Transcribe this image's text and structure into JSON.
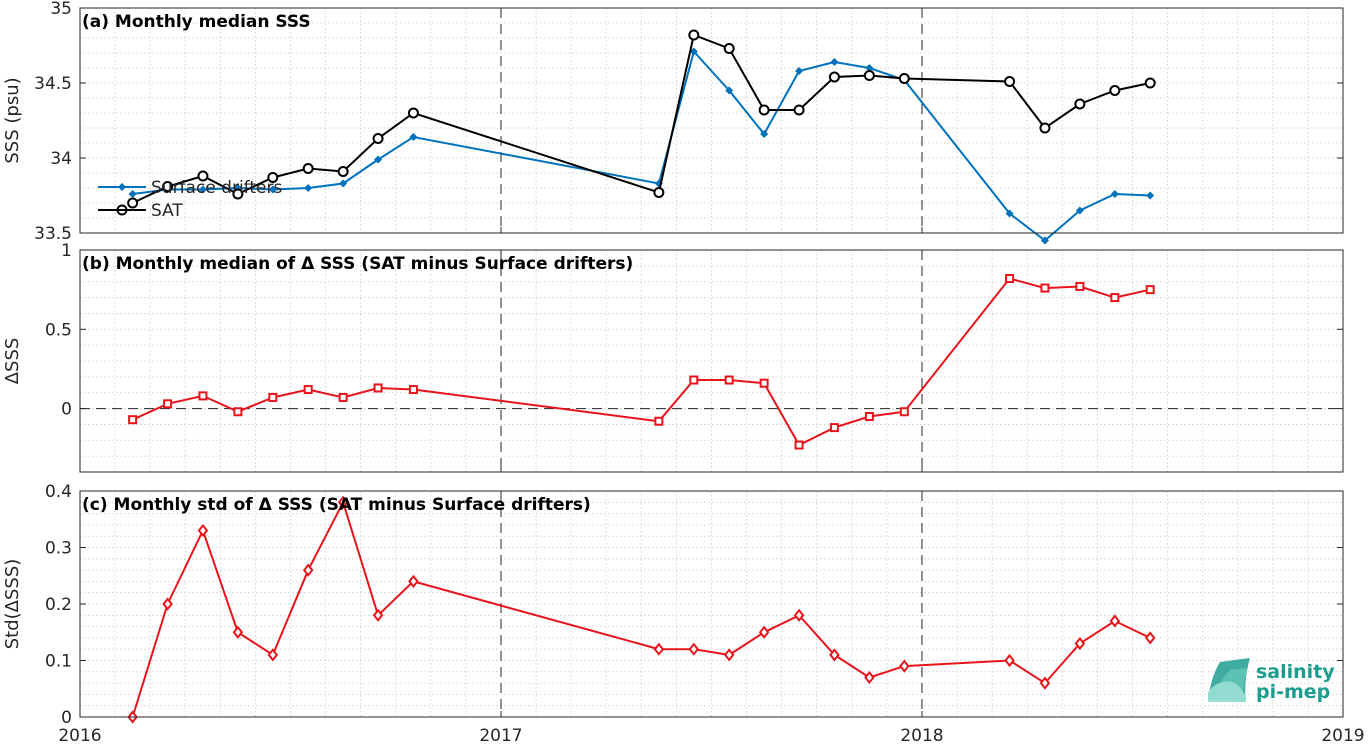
{
  "x_ticks": [
    "2016",
    "2017",
    "2018",
    "2019"
  ],
  "logo": {
    "line1": "salinity",
    "line2": "pi-mep"
  },
  "colors": {
    "surface_drifters": "#0072bd",
    "sat": "#000000",
    "delta": "#e8141c",
    "logo": "#1c9e8f"
  },
  "chart_data": [
    {
      "type": "line",
      "title": "(a) Monthly median SSS",
      "ylabel": "SSS (psu)",
      "xlim": [
        2016.0,
        2019.0
      ],
      "ylim": [
        33.5,
        35.0
      ],
      "y_ticks": [
        "33.5",
        "34",
        "34.5",
        "35"
      ],
      "y_tick_values": [
        33.5,
        34.0,
        34.5,
        35.0
      ],
      "legend": {
        "placement": "bottom-left",
        "entries": [
          "Surface drifters",
          "SAT"
        ]
      },
      "series": [
        {
          "name": "Surface drifters",
          "color": "#0072bd",
          "marker": "diamond",
          "x": [
            2016.125,
            2016.208,
            2016.292,
            2016.375,
            2016.458,
            2016.542,
            2016.625,
            2016.708,
            2016.792,
            2017.375,
            2017.458,
            2017.542,
            2017.625,
            2017.708,
            2017.792,
            2017.875,
            2017.958,
            2018.208,
            2018.292,
            2018.375,
            2018.458,
            2018.542
          ],
          "y": [
            33.76,
            33.79,
            33.79,
            33.8,
            33.79,
            33.8,
            33.83,
            33.99,
            34.14,
            33.83,
            34.71,
            34.45,
            34.16,
            34.58,
            34.64,
            34.6,
            34.52,
            33.63,
            33.45,
            33.65,
            33.76,
            33.75
          ]
        },
        {
          "name": "SAT",
          "color": "#000000",
          "marker": "circle",
          "x": [
            2016.125,
            2016.208,
            2016.292,
            2016.375,
            2016.458,
            2016.542,
            2016.625,
            2016.708,
            2016.792,
            2017.375,
            2017.458,
            2017.542,
            2017.625,
            2017.708,
            2017.792,
            2017.875,
            2017.958,
            2018.208,
            2018.292,
            2018.375,
            2018.458,
            2018.542
          ],
          "y": [
            33.7,
            33.81,
            33.88,
            33.76,
            33.87,
            33.93,
            33.91,
            34.13,
            34.3,
            33.77,
            34.82,
            34.73,
            34.32,
            34.32,
            34.54,
            34.55,
            34.53,
            34.51,
            34.2,
            34.36,
            34.45,
            34.5
          ]
        }
      ]
    },
    {
      "type": "line",
      "title": "(b) Monthly median of Δ SSS (SAT minus Surface drifters)",
      "ylabel": "ΔSSS",
      "xlim": [
        2016.0,
        2019.0
      ],
      "ylim": [
        -0.4,
        1.0
      ],
      "y_ticks": [
        "0",
        "0.5",
        "1"
      ],
      "y_tick_values": [
        0,
        0.5,
        1.0
      ],
      "zero_line": true,
      "series": [
        {
          "color": "#e8141c",
          "marker": "square",
          "x": [
            2016.125,
            2016.208,
            2016.292,
            2016.375,
            2016.458,
            2016.542,
            2016.625,
            2016.708,
            2016.792,
            2017.375,
            2017.458,
            2017.542,
            2017.625,
            2017.708,
            2017.792,
            2017.875,
            2017.958,
            2018.208,
            2018.292,
            2018.375,
            2018.458,
            2018.542
          ],
          "y": [
            -0.07,
            0.03,
            0.08,
            -0.02,
            0.07,
            0.12,
            0.07,
            0.13,
            0.12,
            -0.08,
            0.18,
            0.18,
            0.16,
            -0.23,
            -0.12,
            -0.05,
            -0.02,
            0.82,
            0.76,
            0.77,
            0.7,
            0.75
          ]
        }
      ]
    },
    {
      "type": "line",
      "title": "(c) Monthly std of Δ SSS (SAT minus Surface drifters)",
      "ylabel": "Std(ΔSSS)",
      "xlim": [
        2016.0,
        2019.0
      ],
      "ylim": [
        0,
        0.4
      ],
      "y_ticks": [
        "0",
        "0.1",
        "0.2",
        "0.3",
        "0.4"
      ],
      "y_tick_values": [
        0,
        0.1,
        0.2,
        0.3,
        0.4
      ],
      "series": [
        {
          "color": "#e8141c",
          "marker": "diamond-open",
          "x": [
            2016.125,
            2016.208,
            2016.292,
            2016.375,
            2016.458,
            2016.542,
            2016.625,
            2016.708,
            2016.792,
            2017.375,
            2017.458,
            2017.542,
            2017.625,
            2017.708,
            2017.792,
            2017.875,
            2017.958,
            2018.208,
            2018.292,
            2018.375,
            2018.458,
            2018.542
          ],
          "y": [
            0.0,
            0.2,
            0.33,
            0.15,
            0.11,
            0.26,
            0.38,
            0.18,
            0.24,
            0.12,
            0.12,
            0.11,
            0.15,
            0.18,
            0.11,
            0.07,
            0.09,
            0.1,
            0.06,
            0.13,
            0.17,
            0.14
          ]
        }
      ]
    }
  ]
}
